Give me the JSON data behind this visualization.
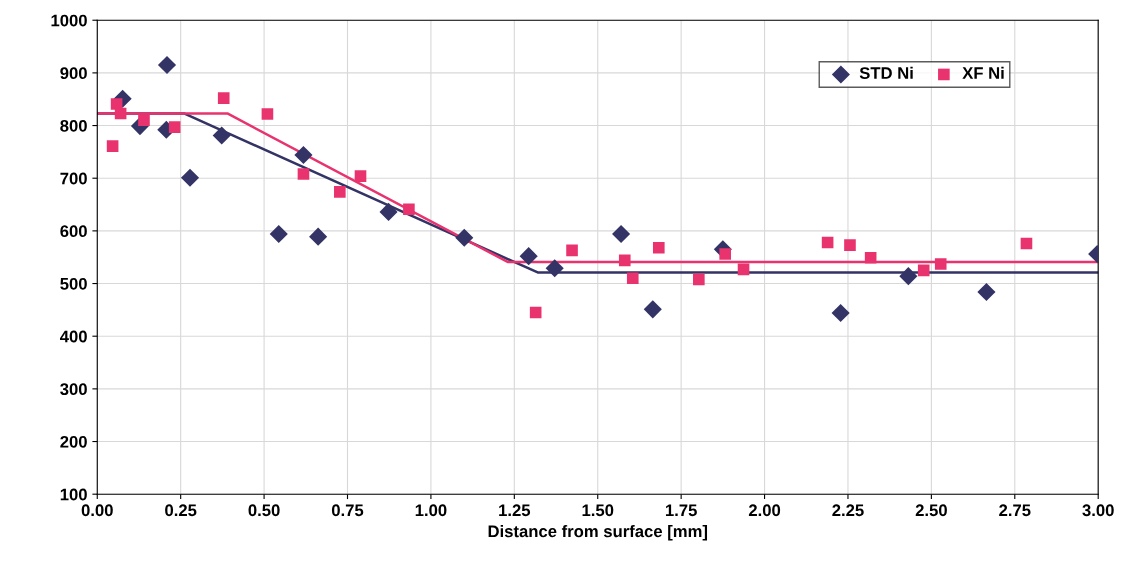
{
  "chart_data": {
    "type": "scatter",
    "xlabel": "Distance from surface [mm]",
    "xlim": [
      0,
      3
    ],
    "ylim": [
      100,
      1000
    ],
    "xticks": [
      {
        "value": 0,
        "label": "0.00"
      },
      {
        "value": 0.25,
        "label": "0.25"
      },
      {
        "value": 0.5,
        "label": "0.50"
      },
      {
        "value": 0.75,
        "label": "0.75"
      },
      {
        "value": 1,
        "label": "1.00"
      },
      {
        "value": 1.25,
        "label": "1.25"
      },
      {
        "value": 1.5,
        "label": "1.50"
      },
      {
        "value": 1.75,
        "label": "1.75"
      },
      {
        "value": 2,
        "label": "2.00"
      },
      {
        "value": 2.25,
        "label": "2.25"
      },
      {
        "value": 2.5,
        "label": "2.50"
      },
      {
        "value": 2.75,
        "label": "2.75"
      },
      {
        "value": 3,
        "label": "3.00"
      }
    ],
    "yticks": [
      100,
      200,
      300,
      400,
      500,
      600,
      700,
      800,
      900,
      1000
    ],
    "grid": true,
    "legend": "top right",
    "series": [
      {
        "name": "STD Ni",
        "marker": "diamond",
        "color": "#333366",
        "x": [
          0.076,
          0.128,
          0.209,
          0.207,
          0.278,
          0.373,
          0.544,
          0.618,
          0.662,
          0.873,
          1.1,
          1.293,
          1.371,
          1.57,
          1.665,
          1.875,
          2.228,
          2.431,
          2.665,
          2.997
        ],
        "values": [
          851,
          799,
          915,
          792,
          701,
          781,
          594,
          744,
          589,
          636,
          587,
          552,
          529,
          594,
          451,
          565,
          444,
          514,
          484,
          556
        ]
      },
      {
        "name": "XF Ni",
        "marker": "square",
        "color": "#e8336e",
        "x": [
          0.058,
          0.07,
          0.046,
          0.14,
          0.232,
          0.379,
          0.51,
          0.618,
          0.727,
          0.789,
          0.934,
          1.314,
          1.423,
          1.581,
          1.605,
          1.683,
          1.803,
          1.882,
          1.937,
          2.189,
          2.256,
          2.318,
          2.477,
          2.528,
          2.785
        ],
        "values": [
          841,
          823,
          761,
          810,
          797,
          852,
          822,
          708,
          674,
          704,
          641,
          445,
          563,
          544,
          510,
          568,
          508,
          556,
          527,
          578,
          573,
          549,
          525,
          537,
          576
        ]
      },
      {
        "type": "line",
        "marker": "none",
        "line_style": "solid",
        "color": "#333366",
        "x": [
          0,
          0.26,
          1.32,
          3.0
        ],
        "values": [
          823,
          823,
          521,
          521
        ]
      },
      {
        "type": "line",
        "marker": "none",
        "line_style": "solid",
        "color": "#e8336e",
        "x": [
          0,
          0.39,
          1.23,
          3.0
        ],
        "values": [
          823,
          823,
          541,
          541
        ]
      }
    ]
  }
}
